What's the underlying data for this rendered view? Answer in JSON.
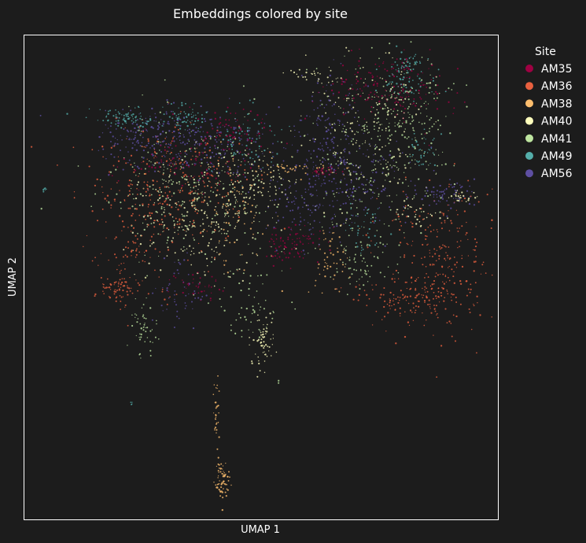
{
  "chart_data": {
    "type": "scatter",
    "title": "Embeddings colored by site",
    "xlabel": "UMAP 1",
    "ylabel": "UMAP 2",
    "legend": {
      "title": "Site",
      "placement": "outside-right"
    },
    "grid": false,
    "background_color": "#1c1c1c",
    "series": [
      {
        "name": "AM35",
        "color": "#9e0142"
      },
      {
        "name": "AM36",
        "color": "#e8603f"
      },
      {
        "name": "AM38",
        "color": "#fdbe6e"
      },
      {
        "name": "AM40",
        "color": "#fefebd"
      },
      {
        "name": "AM41",
        "color": "#bee5a0"
      },
      {
        "name": "AM49",
        "color": "#54aeaa"
      },
      {
        "name": "AM56",
        "color": "#5e4fa2"
      }
    ]
  }
}
